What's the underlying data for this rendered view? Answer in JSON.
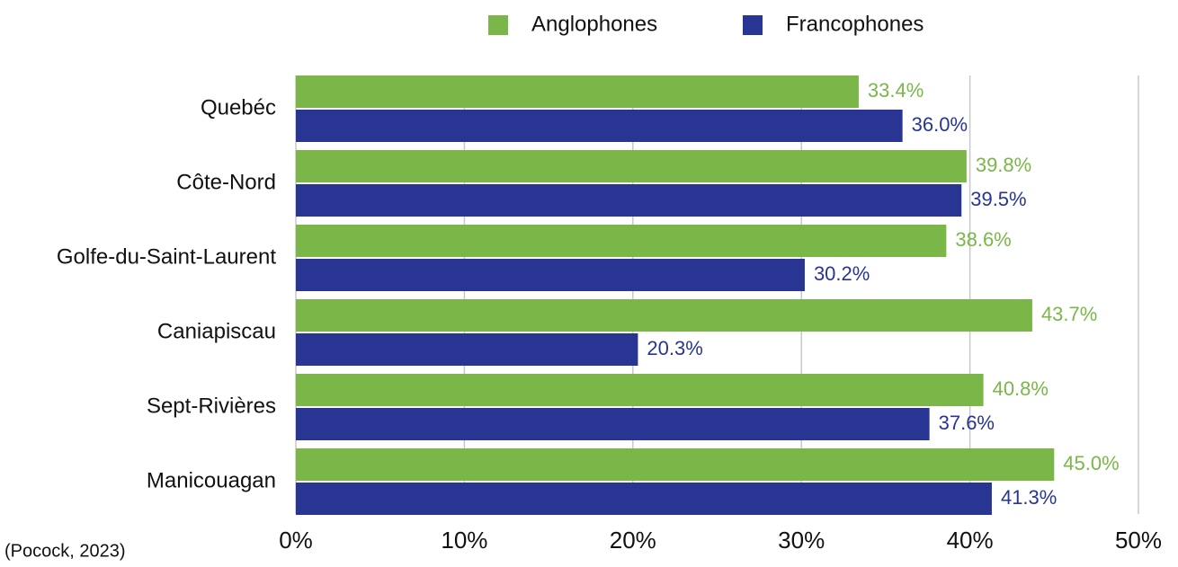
{
  "chart_data": {
    "type": "bar",
    "orientation": "horizontal",
    "categories": [
      "Quebéc",
      "Côte-Nord",
      "Golfe-du-Saint-Laurent",
      "Caniapiscau",
      "Sept-Rivières",
      "Manicouagan"
    ],
    "series": [
      {
        "name": "Anglophones",
        "color": "#7ab648",
        "values": [
          33.4,
          39.8,
          38.6,
          43.7,
          40.8,
          45.0
        ],
        "value_labels": [
          "33.4%",
          "39.8%",
          "38.6%",
          "43.7%",
          "40.8%",
          "45.0%"
        ]
      },
      {
        "name": "Francophones",
        "color": "#283593",
        "values": [
          36.0,
          39.5,
          30.2,
          20.3,
          37.6,
          41.3
        ],
        "value_labels": [
          "36.0%",
          "39.5%",
          "30.2%",
          "20.3%",
          "37.6%",
          "41.3%"
        ]
      }
    ],
    "xlim": [
      0,
      50
    ],
    "xticks": [
      {
        "value": 0,
        "label": "0%"
      },
      {
        "value": 10,
        "label": "10%"
      },
      {
        "value": 20,
        "label": "20%"
      },
      {
        "value": 30,
        "label": "30%"
      },
      {
        "value": 40,
        "label": "40%"
      },
      {
        "value": 50,
        "label": "50%"
      }
    ],
    "grid": true,
    "legend": "top",
    "annotation": "(Pocock, 2023)"
  }
}
